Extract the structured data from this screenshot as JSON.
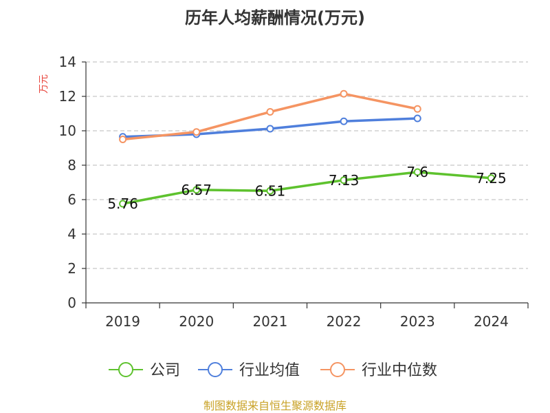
{
  "source": "制图数据来自恒生聚源数据库",
  "chart_data": {
    "type": "line",
    "title": "历年人均薪酬情况(万元)",
    "ylabel": "万元",
    "xlabel": "",
    "ylim": [
      0,
      14
    ],
    "yticks": [
      0,
      2,
      4,
      6,
      8,
      10,
      12,
      14
    ],
    "categories": [
      "2019",
      "2020",
      "2021",
      "2022",
      "2023",
      "2024"
    ],
    "grid": true,
    "legend_position": "bottom",
    "series": [
      {
        "name": "公司",
        "color": "#5ec22e",
        "values": [
          5.76,
          6.57,
          6.51,
          7.13,
          7.6,
          7.25
        ],
        "labels": [
          "5.76",
          "6.57",
          "6.51",
          "7.13",
          "7.6",
          "7.25"
        ]
      },
      {
        "name": "行业均值",
        "color": "#4f7fdc",
        "values": [
          9.65,
          9.8,
          10.12,
          10.55,
          10.72,
          null
        ]
      },
      {
        "name": "行业中位数",
        "color": "#f59462",
        "values": [
          9.5,
          9.93,
          11.1,
          12.15,
          11.27,
          null
        ]
      }
    ]
  }
}
